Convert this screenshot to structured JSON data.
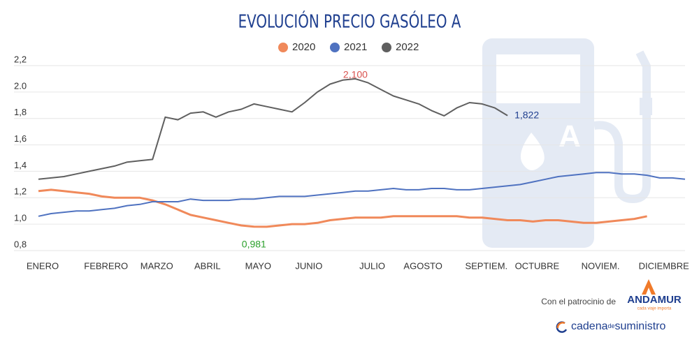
{
  "chart_data": {
    "type": "line",
    "title": "EVOLUCIÓN PRECIO GASÓLEO A",
    "categories": [
      "ENERO",
      null,
      null,
      null,
      null,
      "FEBRERO",
      null,
      null,
      null,
      "MARZO",
      null,
      null,
      null,
      "ABRIL",
      null,
      null,
      null,
      "MAYO",
      null,
      null,
      null,
      "JUNIO",
      null,
      null,
      null,
      null,
      "JULIO",
      null,
      null,
      null,
      "AGOSTO",
      null,
      null,
      null,
      null,
      "SEPTIEM.",
      null,
      null,
      null,
      "OCTUBRE",
      null,
      null,
      null,
      null,
      "NOVIEM.",
      null,
      null,
      null,
      null,
      "DICIEMBRE",
      null,
      null
    ],
    "series": [
      {
        "name": "2020",
        "color": "#f0895a",
        "width": 3,
        "values": [
          1.25,
          1.26,
          1.25,
          1.24,
          1.23,
          1.21,
          1.2,
          1.2,
          1.2,
          1.18,
          1.15,
          1.11,
          1.07,
          1.05,
          1.03,
          1.01,
          0.99,
          0.981,
          0.98,
          0.99,
          1.0,
          1.0,
          1.01,
          1.03,
          1.04,
          1.05,
          1.05,
          1.05,
          1.06,
          1.06,
          1.06,
          1.06,
          1.06,
          1.06,
          1.05,
          1.05,
          1.04,
          1.03,
          1.03,
          1.02,
          1.03,
          1.03,
          1.02,
          1.01,
          1.01,
          1.02,
          1.03,
          1.04,
          1.06,
          null,
          null,
          null
        ],
        "value_labels": [
          null,
          null,
          null,
          null,
          null,
          null,
          null,
          null,
          null,
          null,
          null,
          null,
          null,
          null,
          null,
          null,
          null,
          "0,981",
          null,
          null,
          null,
          null,
          null,
          null,
          null,
          null,
          null,
          null,
          null,
          null,
          null,
          null,
          null,
          null,
          null,
          null,
          null,
          null,
          null,
          null,
          null,
          null,
          null,
          null,
          null,
          null,
          null,
          null,
          null,
          null,
          null,
          null
        ],
        "value_label_colors": [
          null,
          null,
          null,
          null,
          null,
          null,
          null,
          null,
          null,
          null,
          null,
          null,
          null,
          null,
          null,
          null,
          null,
          "#2ca02c",
          null,
          null,
          null,
          null,
          null,
          null,
          null,
          null,
          null,
          null,
          null,
          null,
          null,
          null,
          null,
          null,
          null,
          null,
          null,
          null,
          null,
          null,
          null,
          null,
          null,
          null,
          null,
          null,
          null,
          null,
          null,
          null,
          null,
          null
        ]
      },
      {
        "name": "2021",
        "color": "#4f72c0",
        "width": 2,
        "values": [
          1.06,
          1.08,
          1.09,
          1.1,
          1.1,
          1.11,
          1.12,
          1.14,
          1.15,
          1.17,
          1.17,
          1.17,
          1.19,
          1.18,
          1.18,
          1.18,
          1.19,
          1.19,
          1.2,
          1.21,
          1.21,
          1.21,
          1.22,
          1.23,
          1.24,
          1.25,
          1.25,
          1.26,
          1.27,
          1.26,
          1.26,
          1.27,
          1.27,
          1.26,
          1.26,
          1.27,
          1.28,
          1.29,
          1.3,
          1.32,
          1.34,
          1.36,
          1.37,
          1.38,
          1.39,
          1.39,
          1.38,
          1.38,
          1.37,
          1.35,
          1.35,
          1.34
        ]
      },
      {
        "name": "2022",
        "color": "#5f5f5f",
        "width": 2,
        "values": [
          1.34,
          1.35,
          1.36,
          1.38,
          1.4,
          1.42,
          1.44,
          1.47,
          1.48,
          1.49,
          1.81,
          1.79,
          1.84,
          1.85,
          1.81,
          1.85,
          1.87,
          1.91,
          1.89,
          1.87,
          1.85,
          1.92,
          2.0,
          2.06,
          2.09,
          2.1,
          2.07,
          2.02,
          1.97,
          1.94,
          1.91,
          1.86,
          1.82,
          1.88,
          1.92,
          1.91,
          1.88,
          1.822,
          null,
          null,
          null,
          null,
          null,
          null,
          null,
          null,
          null,
          null,
          null,
          null,
          null,
          null
        ],
        "value_labels": [
          null,
          null,
          null,
          null,
          null,
          null,
          null,
          null,
          null,
          null,
          null,
          null,
          null,
          null,
          null,
          null,
          null,
          null,
          null,
          null,
          null,
          null,
          null,
          null,
          null,
          "2,100",
          null,
          null,
          null,
          null,
          null,
          null,
          null,
          null,
          null,
          null,
          null,
          "1,822",
          null,
          null,
          null,
          null,
          null,
          null,
          null,
          null,
          null,
          null,
          null,
          null,
          null,
          null
        ],
        "value_label_colors": [
          null,
          null,
          null,
          null,
          null,
          null,
          null,
          null,
          null,
          null,
          null,
          null,
          null,
          null,
          null,
          null,
          null,
          null,
          null,
          null,
          null,
          null,
          null,
          null,
          null,
          "#d9534f",
          null,
          null,
          null,
          null,
          null,
          null,
          null,
          null,
          null,
          null,
          null,
          "#1f3f8f",
          null,
          null,
          null,
          null,
          null,
          null,
          null,
          null,
          null,
          null,
          null,
          null,
          null,
          null
        ]
      }
    ],
    "ylim": [
      0.8,
      2.2
    ],
    "yticks": [
      {
        "value": 0.8,
        "label": "0,8"
      },
      {
        "value": 1.0,
        "label": "1,0"
      },
      {
        "value": 1.2,
        "label": "1,2"
      },
      {
        "value": 1.4,
        "label": "1,4"
      },
      {
        "value": 1.6,
        "label": "1,6"
      },
      {
        "value": 1.8,
        "label": "1,8"
      },
      {
        "value": 2.0,
        "label": "2.0"
      },
      {
        "value": 2.2,
        "label": "2,2"
      }
    ],
    "grid": true,
    "legend": "top"
  },
  "footer": {
    "sponsor": "Con el patrocinio de",
    "brand": "ANDAMUR",
    "tagline": "cada viaje importa",
    "logo": {
      "part1": "cadena",
      "part2": "de",
      "part3": "suministro"
    }
  }
}
